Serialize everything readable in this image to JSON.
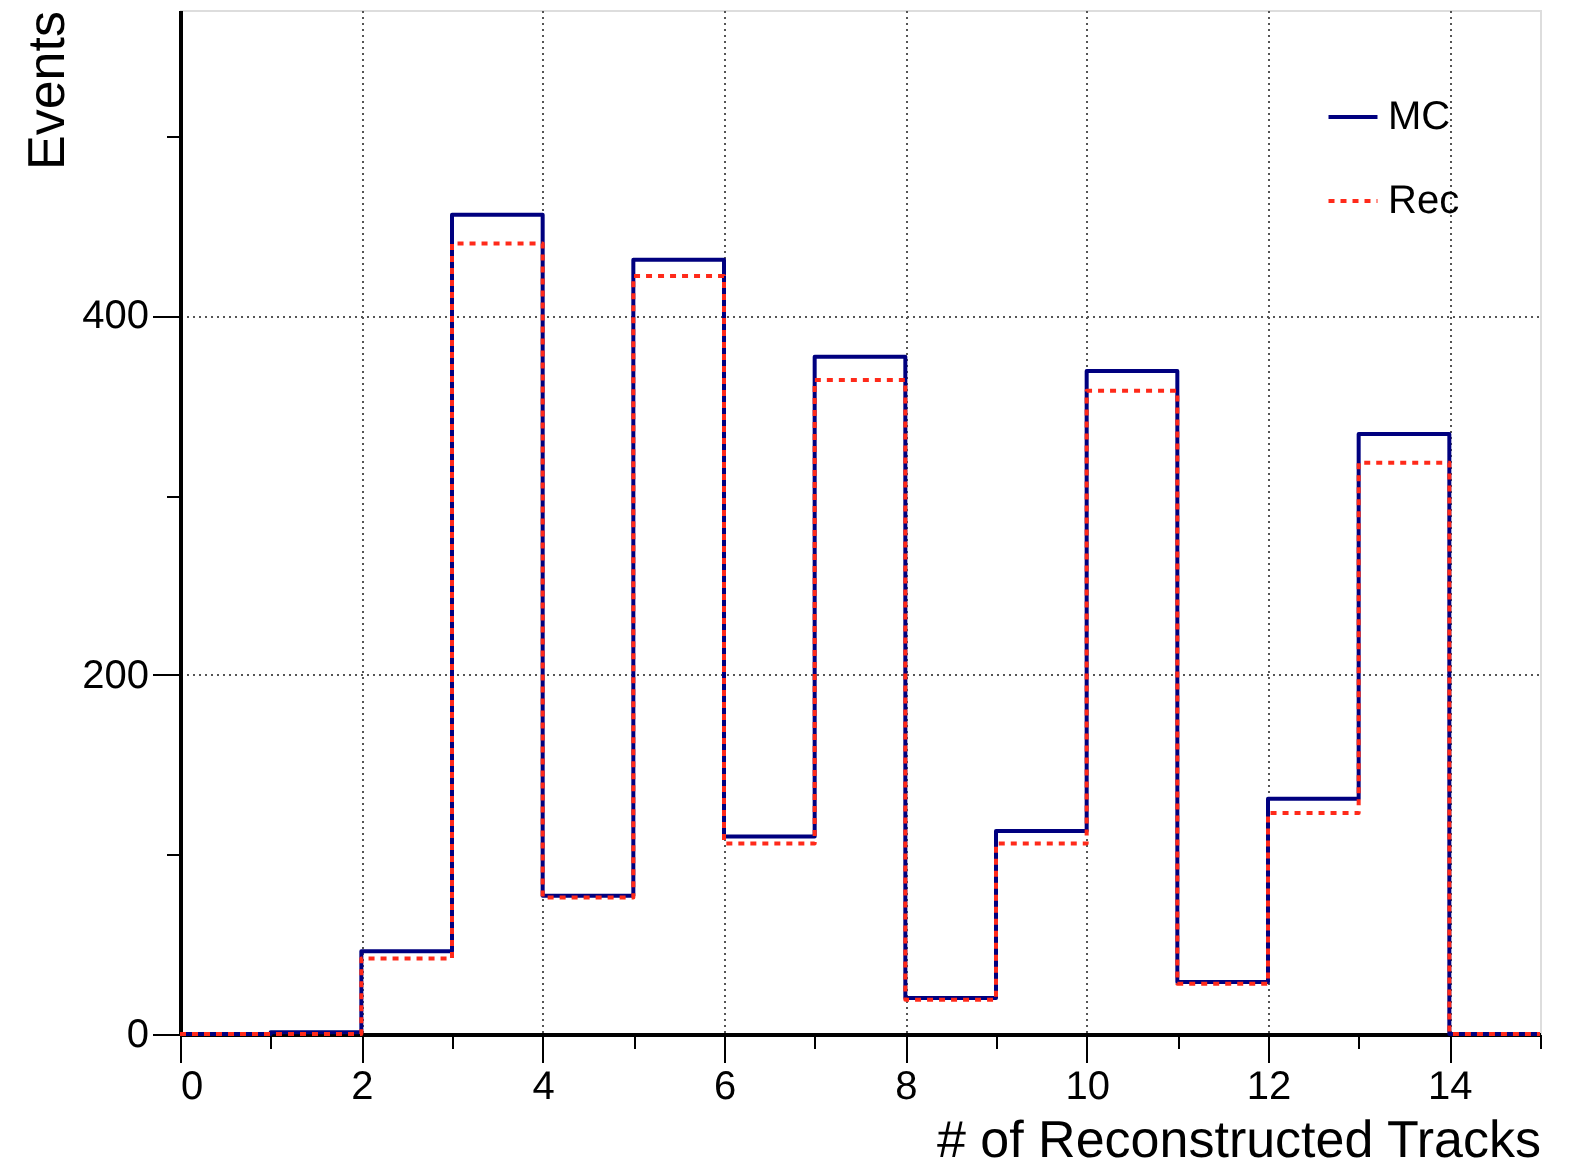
{
  "chart_data": {
    "type": "histogram",
    "xlabel": "# of Reconstructed Tracks",
    "ylabel": "Events",
    "bins": [
      0,
      1,
      2,
      3,
      4,
      5,
      6,
      7,
      8,
      9,
      10,
      11,
      12,
      13,
      14,
      15
    ],
    "series": [
      {
        "name": "MC",
        "color": "#00007f",
        "line_style": "solid",
        "values": [
          0,
          1,
          46,
          456,
          77,
          431,
          110,
          377,
          20,
          113,
          369,
          29,
          131,
          334,
          0
        ]
      },
      {
        "name": "Rec",
        "color": "#ff2a1a",
        "line_style": "dotted",
        "values": [
          0,
          0,
          42,
          440,
          76,
          422,
          106,
          364,
          19,
          106,
          358,
          28,
          123,
          318,
          0
        ]
      }
    ],
    "xlim": [
      0,
      15
    ],
    "xticks": [
      0,
      {
        "value": 1,
        "label": null
      },
      2,
      {
        "value": 3,
        "label": null
      },
      4,
      {
        "value": 5,
        "label": null
      },
      6,
      {
        "value": 7,
        "label": null
      },
      8,
      {
        "value": 9,
        "label": null
      },
      10,
      {
        "value": 11,
        "label": null
      },
      12,
      {
        "value": 13,
        "label": null
      },
      14,
      {
        "value": 15,
        "label": null
      }
    ],
    "ylim": [
      0,
      570
    ],
    "yticks": [
      0,
      {
        "value": 100,
        "label": null
      },
      200,
      {
        "value": 300,
        "label": null
      },
      400,
      {
        "value": 500,
        "label": null
      }
    ],
    "grid": true,
    "legend": "top right",
    "marker": "none"
  }
}
